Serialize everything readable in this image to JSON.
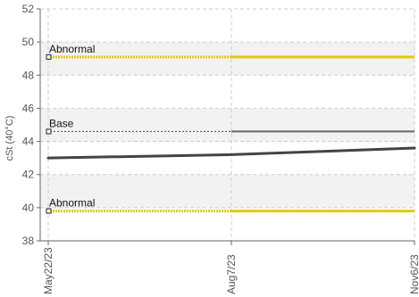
{
  "chart_data": {
    "type": "line",
    "title": "",
    "xlabel": "",
    "ylabel": "cSt (40°C)",
    "ylim": [
      38,
      52
    ],
    "yticks": [
      38,
      40,
      42,
      44,
      46,
      48,
      50,
      52
    ],
    "xticks": [
      "May22/23",
      "Aug7/23",
      "Nov6/23"
    ],
    "grid": true,
    "bands": [
      {
        "from": 48,
        "to": 50,
        "color": "#f2f2f2"
      },
      {
        "from": 44,
        "to": 46,
        "color": "#f2f2f2"
      },
      {
        "from": 40,
        "to": 42,
        "color": "#f2f2f2"
      }
    ],
    "reference_lines": [
      {
        "label": "Abnormal",
        "value": 49.1,
        "color": "#e8c800",
        "style": "marker"
      },
      {
        "label": "Base",
        "value": 44.6,
        "color": "#666666",
        "style": "dotted"
      },
      {
        "label": "Abnormal",
        "value": 39.8,
        "color": "#e8c800",
        "style": "marker"
      }
    ],
    "series": [
      {
        "x": [
          "May22/23",
          "Aug7/23",
          "Nov6/23"
        ],
        "values": [
          43.0,
          43.2,
          43.6
        ],
        "color": "#444444"
      }
    ]
  }
}
